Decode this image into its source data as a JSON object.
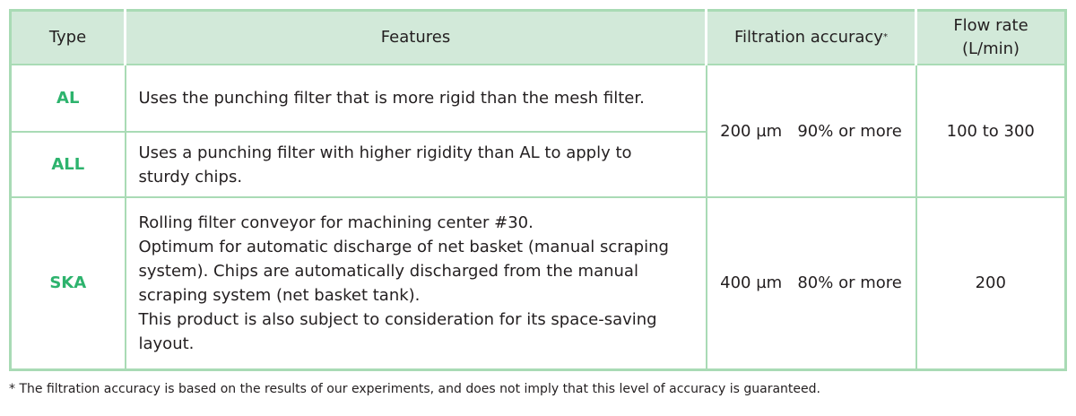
{
  "headers": {
    "type": "Type",
    "features": "Features",
    "accuracy": "Filtration accuracy",
    "accuracy_mark": "*",
    "flow_line1": "Flow rate",
    "flow_line2": "(L/min)"
  },
  "rows": [
    {
      "type": "AL",
      "features": "Uses the punching filter that is more rigid than the mesh filter."
    },
    {
      "type": "ALL",
      "features": "Uses a punching filter with higher rigidity than AL to apply to sturdy chips."
    },
    {
      "type": "SKA",
      "features": [
        "Rolling filter conveyor for machining center #30.",
        "Optimum for automatic discharge of net basket (manual scraping system). Chips are automatically discharged from the manual scraping system (net basket tank).",
        "This product is also subject to consideration for its space-saving layout."
      ]
    }
  ],
  "groups": [
    {
      "accuracy": "200 µm   90% or more",
      "flow": "100 to 300"
    },
    {
      "accuracy": "400 µm   80% or more",
      "flow": "200"
    }
  ],
  "footnote": "*  The filtration accuracy is based on the results of our experiments, and does not imply that this level of accuracy is guaranteed.",
  "colors": {
    "accent": "#2db36d",
    "header_bg": "#d2e9d9",
    "border": "#a9dbb5"
  }
}
